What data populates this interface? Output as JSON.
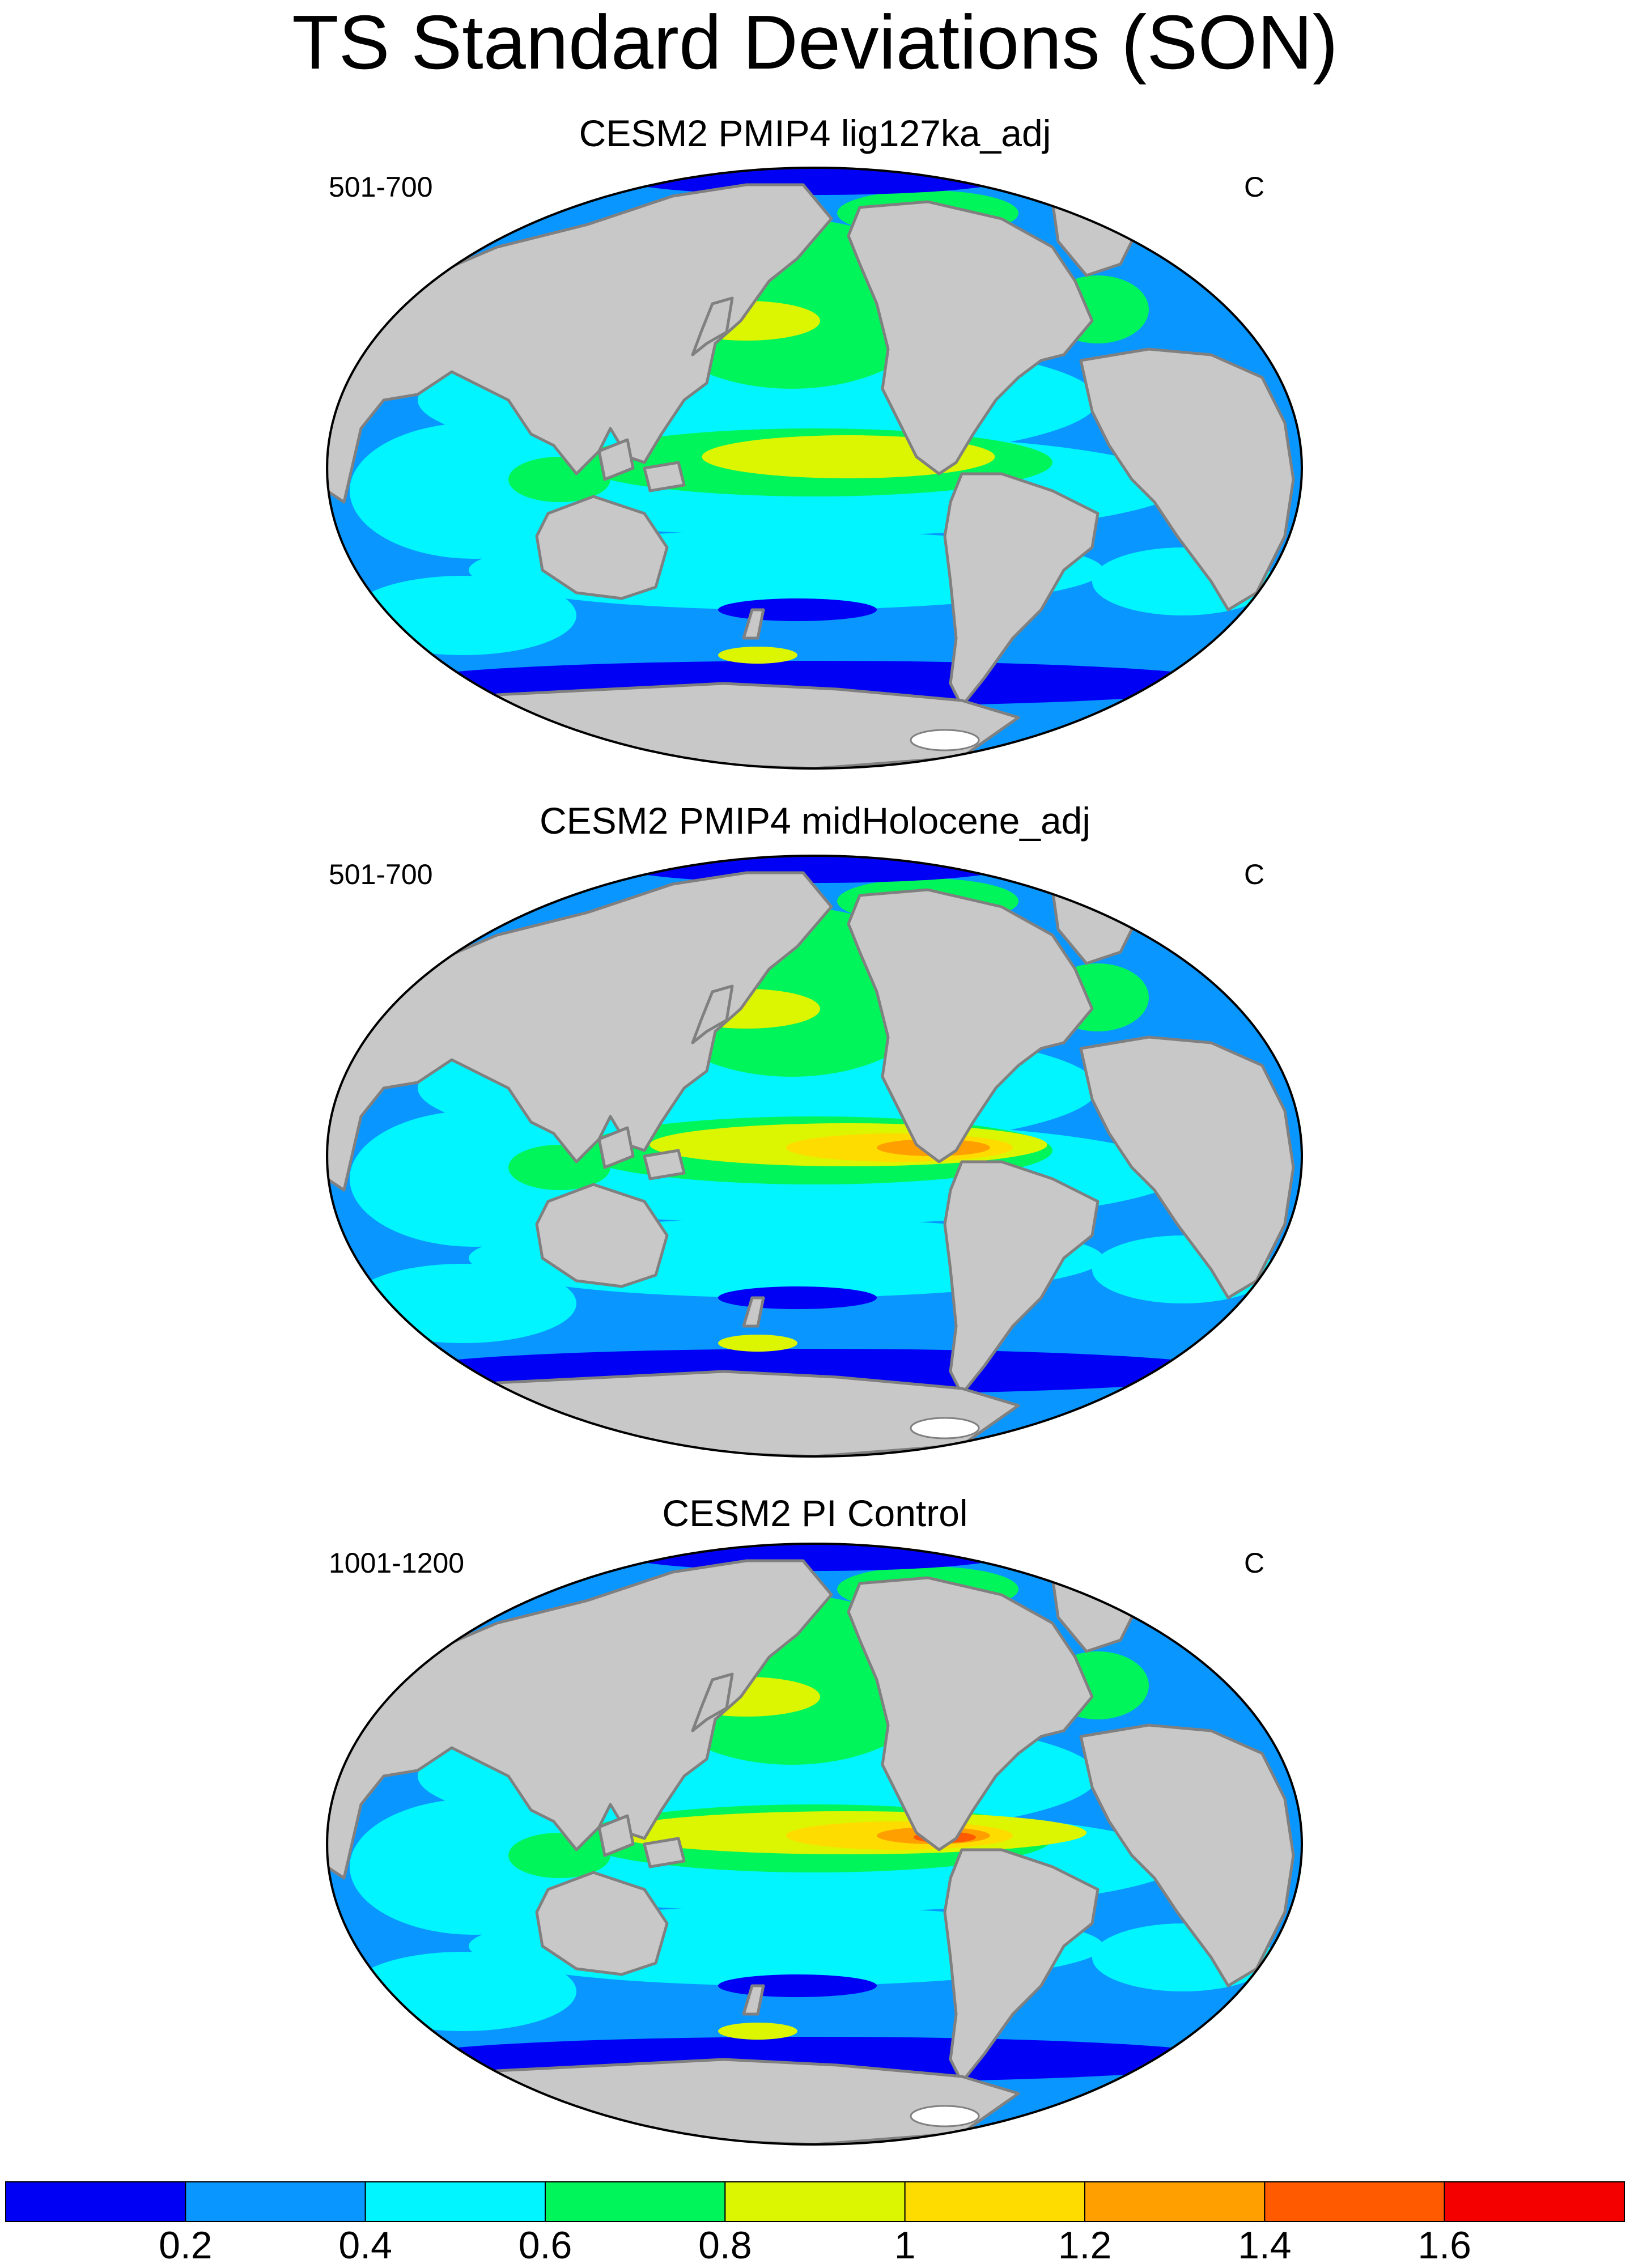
{
  "title": "TS Standard Deviations (SON)",
  "panels": [
    {
      "title": "CESM2 PMIP4 lig127ka_adj",
      "left_label": "501-700",
      "right_label": "C",
      "variant": 0
    },
    {
      "title": "CESM2 PMIP4 midHolocene_adj",
      "left_label": "501-700",
      "right_label": "C",
      "variant": 1
    },
    {
      "title": "CESM2 PI Control",
      "left_label": "1001-1200",
      "right_label": "C",
      "variant": 2
    }
  ],
  "colorbar": {
    "colors": [
      "#0000f5",
      "#0a96ff",
      "#00f5ff",
      "#00f55a",
      "#dcf500",
      "#ffdc00",
      "#ffa000",
      "#ff5a00",
      "#f50000"
    ],
    "labels": [
      "0.2",
      "0.4",
      "0.6",
      "0.8",
      "1",
      "1.2",
      "1.4",
      "1.6"
    ]
  },
  "land_color": "#c8c8c8",
  "coast_color": "#808080"
}
